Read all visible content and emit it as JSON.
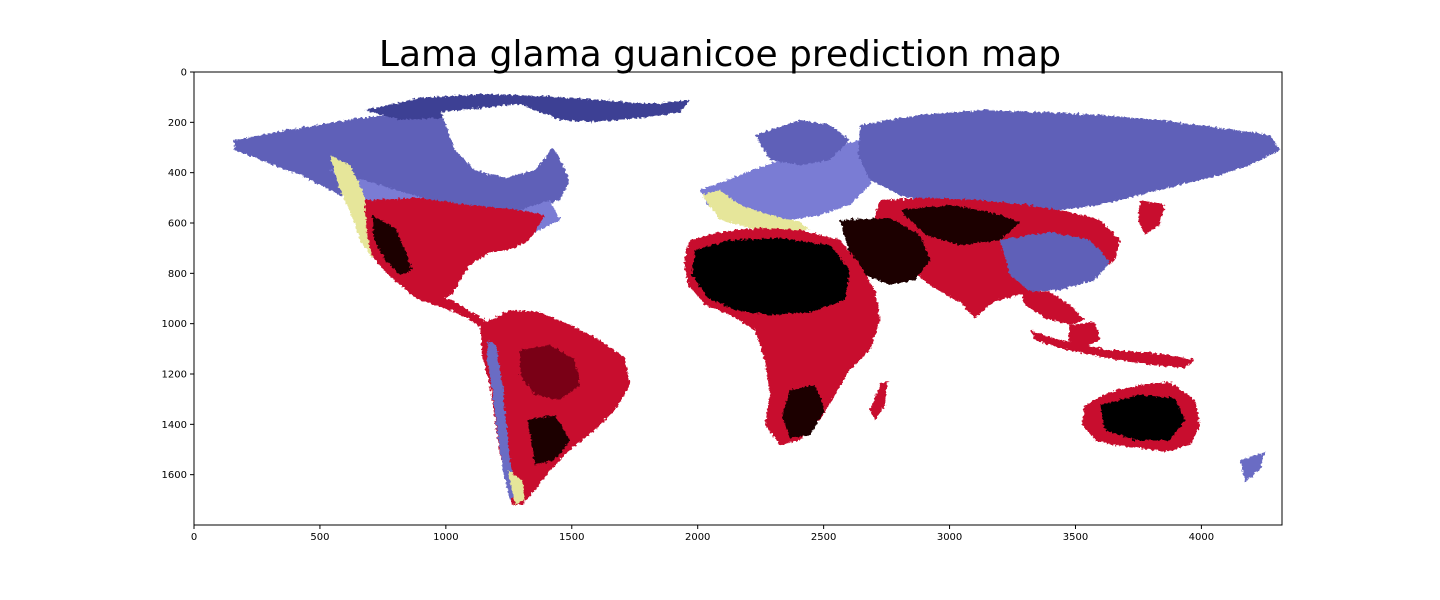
{
  "chart_data": {
    "type": "heatmap",
    "title": "Lama glama guanicoe prediction map",
    "xlabel": "",
    "ylabel": "",
    "xlim": [
      0,
      4320
    ],
    "ylim": [
      1800,
      0
    ],
    "x_ticks": [
      0,
      500,
      1000,
      1500,
      2000,
      2500,
      3000,
      3500,
      4000
    ],
    "y_ticks": [
      0,
      200,
      400,
      600,
      800,
      1000,
      1200,
      1400,
      1600
    ],
    "grid": false,
    "colors": {
      "very_low": "#000000",
      "low": "#c8102e",
      "medium": "#6a6cc4",
      "high": "#e6e69a",
      "ocean": "#ffffff"
    }
  }
}
